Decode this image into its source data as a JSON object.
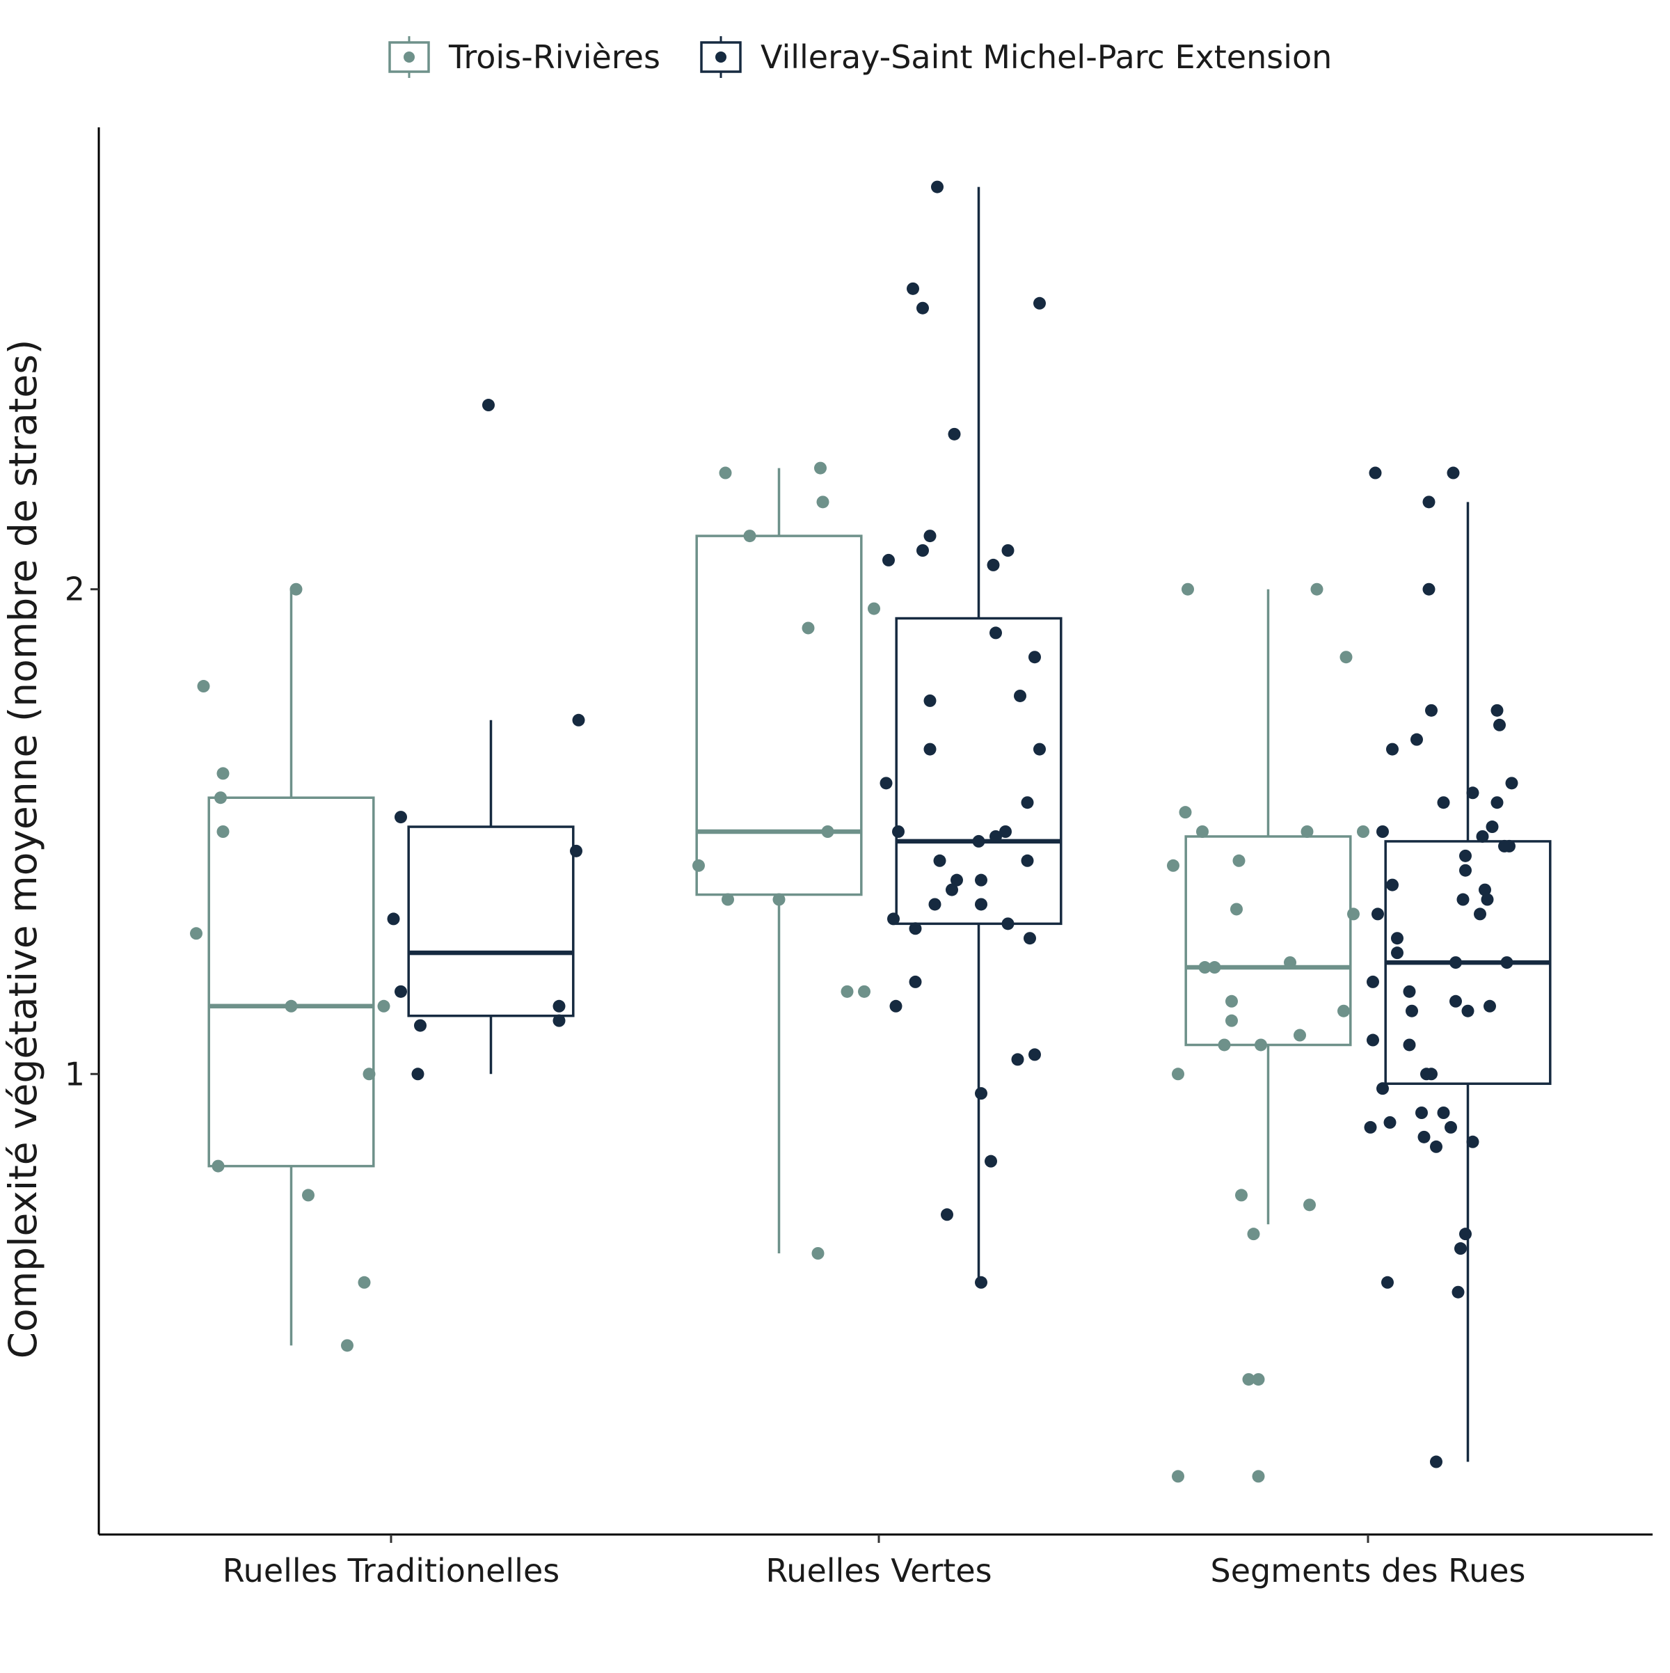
{
  "chart_data": {
    "type": "box",
    "title": "",
    "xlabel": "",
    "ylabel": "Complexité végétative moyenne (nombre de strates)",
    "ylim": [
      0.05,
      2.95
    ],
    "yticks": [
      1,
      2
    ],
    "ytick_labels": [
      "1",
      "2"
    ],
    "categories": [
      "Ruelles Traditionelles",
      "Ruelles Vertes",
      "Segments des Rues"
    ],
    "grid": false,
    "legend_position": "top",
    "series": [
      {
        "name": "Trois-Rivières",
        "color": "#6e918a",
        "boxes": [
          {
            "whisker_low": 0.44,
            "q1": 0.81,
            "median": 1.14,
            "q3": 1.57,
            "whisker_high": 2.0
          },
          {
            "whisker_low": 0.63,
            "q1": 1.37,
            "median": 1.5,
            "q3": 2.11,
            "whisker_high": 2.25
          },
          {
            "whisker_low": 0.69,
            "q1": 1.06,
            "median": 1.22,
            "q3": 1.49,
            "whisker_high": 2.0
          }
        ],
        "points": [
          [
            {
              "offset": -0.195,
              "y": 1.29
            },
            {
              "offset": -0.18,
              "y": 1.8
            },
            {
              "offset": -0.14,
              "y": 1.62
            },
            {
              "offset": -0.145,
              "y": 1.57
            },
            {
              "offset": -0.14,
              "y": 1.5
            },
            {
              "offset": -0.15,
              "y": 0.81
            },
            {
              "offset": 0.01,
              "y": 2.0
            },
            {
              "offset": 0.0,
              "y": 1.14
            },
            {
              "offset": 0.035,
              "y": 0.75
            },
            {
              "offset": 0.115,
              "y": 0.44
            },
            {
              "offset": 0.15,
              "y": 0.57
            },
            {
              "offset": 0.16,
              "y": 1.0
            },
            {
              "offset": 0.19,
              "y": 1.14
            }
          ],
          [
            {
              "offset": -0.165,
              "y": 1.43
            },
            {
              "offset": -0.11,
              "y": 2.24
            },
            {
              "offset": -0.105,
              "y": 1.36
            },
            {
              "offset": -0.06,
              "y": 2.11
            },
            {
              "offset": 0.0,
              "y": 1.36
            },
            {
              "offset": 0.06,
              "y": 1.92
            },
            {
              "offset": 0.08,
              "y": 0.63
            },
            {
              "offset": 0.085,
              "y": 2.25
            },
            {
              "offset": 0.09,
              "y": 2.18
            },
            {
              "offset": 0.1,
              "y": 1.5
            },
            {
              "offset": 0.14,
              "y": 1.17
            },
            {
              "offset": 0.175,
              "y": 1.17
            },
            {
              "offset": 0.195,
              "y": 1.96
            }
          ],
          [
            {
              "offset": -0.195,
              "y": 1.43
            },
            {
              "offset": -0.185,
              "y": 1.0
            },
            {
              "offset": -0.185,
              "y": 0.17
            },
            {
              "offset": -0.17,
              "y": 1.54
            },
            {
              "offset": -0.165,
              "y": 2.0
            },
            {
              "offset": -0.135,
              "y": 1.5
            },
            {
              "offset": -0.13,
              "y": 1.22
            },
            {
              "offset": -0.11,
              "y": 1.22
            },
            {
              "offset": -0.09,
              "y": 1.06
            },
            {
              "offset": -0.075,
              "y": 1.15
            },
            {
              "offset": -0.075,
              "y": 1.11
            },
            {
              "offset": -0.065,
              "y": 1.34
            },
            {
              "offset": -0.06,
              "y": 1.44
            },
            {
              "offset": -0.055,
              "y": 0.75
            },
            {
              "offset": -0.04,
              "y": 0.37
            },
            {
              "offset": -0.03,
              "y": 0.67
            },
            {
              "offset": -0.02,
              "y": 0.37
            },
            {
              "offset": -0.02,
              "y": 0.17
            },
            {
              "offset": -0.015,
              "y": 1.06
            },
            {
              "offset": 0.045,
              "y": 1.23
            },
            {
              "offset": 0.065,
              "y": 1.08
            },
            {
              "offset": 0.08,
              "y": 1.5
            },
            {
              "offset": 0.085,
              "y": 0.73
            },
            {
              "offset": 0.1,
              "y": 2.0
            },
            {
              "offset": 0.155,
              "y": 1.13
            },
            {
              "offset": 0.16,
              "y": 1.86
            },
            {
              "offset": 0.175,
              "y": 1.33
            },
            {
              "offset": 0.195,
              "y": 1.5
            }
          ]
        ]
      },
      {
        "name": "Villeray-Saint Michel-Parc Extension",
        "color": "#162a40",
        "boxes": [
          {
            "whisker_low": 1.0,
            "q1": 1.12,
            "median": 1.25,
            "q3": 1.51,
            "whisker_high": 1.73
          },
          {
            "whisker_low": 0.57,
            "q1": 1.31,
            "median": 1.48,
            "q3": 1.94,
            "whisker_high": 2.83
          },
          {
            "whisker_low": 0.2,
            "q1": 0.98,
            "median": 1.23,
            "q3": 1.48,
            "whisker_high": 2.18
          }
        ],
        "points": [
          [
            {
              "offset": -0.2,
              "y": 1.32
            },
            {
              "offset": -0.185,
              "y": 1.17
            },
            {
              "offset": -0.185,
              "y": 1.53
            },
            {
              "offset": -0.15,
              "y": 1.0
            },
            {
              "offset": -0.145,
              "y": 1.1
            },
            {
              "offset": -0.005,
              "y": 2.38
            },
            {
              "offset": 0.14,
              "y": 1.14
            },
            {
              "offset": 0.14,
              "y": 1.11
            },
            {
              "offset": 0.175,
              "y": 1.46
            },
            {
              "offset": 0.18,
              "y": 1.73
            }
          ],
          [
            {
              "offset": -0.185,
              "y": 2.06
            },
            {
              "offset": -0.19,
              "y": 1.6
            },
            {
              "offset": -0.175,
              "y": 1.32
            },
            {
              "offset": -0.165,
              "y": 1.5
            },
            {
              "offset": -0.17,
              "y": 1.14
            },
            {
              "offset": -0.135,
              "y": 2.62
            },
            {
              "offset": -0.13,
              "y": 1.3
            },
            {
              "offset": -0.13,
              "y": 1.19
            },
            {
              "offset": -0.115,
              "y": 2.58
            },
            {
              "offset": -0.115,
              "y": 2.08
            },
            {
              "offset": -0.1,
              "y": 1.77
            },
            {
              "offset": -0.1,
              "y": 1.67
            },
            {
              "offset": -0.1,
              "y": 2.11
            },
            {
              "offset": -0.09,
              "y": 1.35
            },
            {
              "offset": -0.085,
              "y": 2.83
            },
            {
              "offset": -0.08,
              "y": 1.44
            },
            {
              "offset": -0.065,
              "y": 0.71
            },
            {
              "offset": -0.055,
              "y": 1.38
            },
            {
              "offset": -0.05,
              "y": 2.32
            },
            {
              "offset": -0.045,
              "y": 1.4
            },
            {
              "offset": 0.0,
              "y": 1.48
            },
            {
              "offset": 0.005,
              "y": 1.4
            },
            {
              "offset": 0.005,
              "y": 1.35
            },
            {
              "offset": 0.005,
              "y": 0.96
            },
            {
              "offset": 0.005,
              "y": 0.57
            },
            {
              "offset": 0.025,
              "y": 0.82
            },
            {
              "offset": 0.03,
              "y": 2.05
            },
            {
              "offset": 0.035,
              "y": 1.91
            },
            {
              "offset": 0.035,
              "y": 1.49
            },
            {
              "offset": 0.055,
              "y": 1.5
            },
            {
              "offset": 0.06,
              "y": 1.31
            },
            {
              "offset": 0.06,
              "y": 2.08
            },
            {
              "offset": 0.08,
              "y": 1.03
            },
            {
              "offset": 0.085,
              "y": 1.78
            },
            {
              "offset": 0.1,
              "y": 1.56
            },
            {
              "offset": 0.1,
              "y": 1.44
            },
            {
              "offset": 0.105,
              "y": 1.28
            },
            {
              "offset": 0.115,
              "y": 1.04
            },
            {
              "offset": 0.115,
              "y": 1.86
            },
            {
              "offset": 0.125,
              "y": 1.67
            },
            {
              "offset": 0.125,
              "y": 2.59
            }
          ],
          [
            {
              "offset": -0.2,
              "y": 0.89
            },
            {
              "offset": -0.195,
              "y": 1.19
            },
            {
              "offset": -0.195,
              "y": 1.07
            },
            {
              "offset": -0.19,
              "y": 2.24
            },
            {
              "offset": -0.185,
              "y": 1.33
            },
            {
              "offset": -0.175,
              "y": 1.5
            },
            {
              "offset": -0.175,
              "y": 0.97
            },
            {
              "offset": -0.165,
              "y": 0.57
            },
            {
              "offset": -0.16,
              "y": 0.9
            },
            {
              "offset": -0.155,
              "y": 1.67
            },
            {
              "offset": -0.155,
              "y": 1.39
            },
            {
              "offset": -0.145,
              "y": 1.25
            },
            {
              "offset": -0.145,
              "y": 1.28
            },
            {
              "offset": -0.12,
              "y": 1.06
            },
            {
              "offset": -0.115,
              "y": 1.13
            },
            {
              "offset": -0.12,
              "y": 1.17
            },
            {
              "offset": -0.105,
              "y": 1.69
            },
            {
              "offset": -0.095,
              "y": 0.92
            },
            {
              "offset": -0.09,
              "y": 0.87
            },
            {
              "offset": -0.085,
              "y": 1.0
            },
            {
              "offset": -0.075,
              "y": 1.0
            },
            {
              "offset": -0.08,
              "y": 2.18
            },
            {
              "offset": -0.08,
              "y": 2.0
            },
            {
              "offset": -0.075,
              "y": 1.75
            },
            {
              "offset": -0.065,
              "y": 0.85
            },
            {
              "offset": -0.065,
              "y": 0.2
            },
            {
              "offset": -0.05,
              "y": 1.56
            },
            {
              "offset": -0.05,
              "y": 0.92
            },
            {
              "offset": -0.035,
              "y": 0.89
            },
            {
              "offset": -0.03,
              "y": 2.24
            },
            {
              "offset": -0.025,
              "y": 1.23
            },
            {
              "offset": -0.025,
              "y": 1.15
            },
            {
              "offset": -0.02,
              "y": 0.55
            },
            {
              "offset": -0.015,
              "y": 0.64
            },
            {
              "offset": -0.01,
              "y": 1.36
            },
            {
              "offset": -0.005,
              "y": 1.42
            },
            {
              "offset": -0.005,
              "y": 1.45
            },
            {
              "offset": -0.005,
              "y": 0.67
            },
            {
              "offset": 0.0,
              "y": 1.13
            },
            {
              "offset": 0.01,
              "y": 1.58
            },
            {
              "offset": 0.01,
              "y": 0.86
            },
            {
              "offset": 0.025,
              "y": 1.33
            },
            {
              "offset": 0.03,
              "y": 1.49
            },
            {
              "offset": 0.035,
              "y": 1.38
            },
            {
              "offset": 0.04,
              "y": 1.36
            },
            {
              "offset": 0.045,
              "y": 1.14
            },
            {
              "offset": 0.05,
              "y": 1.51
            },
            {
              "offset": 0.06,
              "y": 1.56
            },
            {
              "offset": 0.06,
              "y": 1.75
            },
            {
              "offset": 0.065,
              "y": 1.72
            },
            {
              "offset": 0.075,
              "y": 1.47
            },
            {
              "offset": 0.08,
              "y": 1.23
            },
            {
              "offset": 0.085,
              "y": 1.47
            },
            {
              "offset": 0.09,
              "y": 1.6
            }
          ]
        ]
      }
    ]
  }
}
